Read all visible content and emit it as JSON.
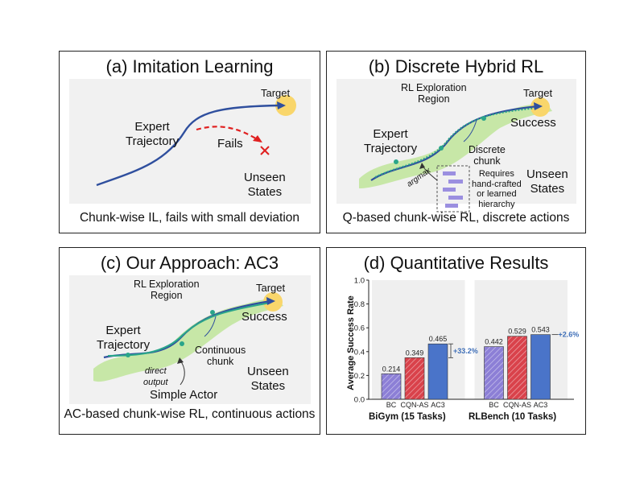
{
  "panel_a": {
    "title": "(a) Imitation Learning",
    "target": "Target",
    "expert": "Expert\nTrajectory",
    "fails": "Fails",
    "unseen": "Unseen\nStates",
    "caption": "Chunk-wise IL, fails with small deviation"
  },
  "panel_b": {
    "title": "(b) Discrete Hybrid RL",
    "rl_region": "RL Exploration\nRegion",
    "target": "Target",
    "success": "Success",
    "expert": "Expert\nTrajectory",
    "discrete_chunk": "Discrete\nchunk",
    "argmax": "argmax",
    "requires": "Requires\nhand-crafted\nor learned\nhierarchy",
    "unseen": "Unseen\nStates",
    "caption": "Q-based chunk-wise RL, discrete actions"
  },
  "panel_c": {
    "title": "(c) Our Approach: AC3",
    "rl_region": "RL Exploration\nRegion",
    "target": "Target",
    "success": "Success",
    "expert": "Expert\nTrajectory",
    "continuous_chunk": "Continuous\nchunk",
    "direct_output": "direct\noutput",
    "simple_actor": "Simple Actor",
    "unseen": "Unseen\nStates",
    "caption": "AC-based chunk-wise RL, continuous actions"
  },
  "panel_d": {
    "title": "(d) Quantitative Results"
  },
  "chart_data": {
    "type": "bar",
    "ylabel": "Average Success Rate",
    "ylim": [
      0.0,
      1.0
    ],
    "yticks": [
      "0.0",
      "0.2",
      "0.4",
      "0.6",
      "0.8",
      "1.0"
    ],
    "groups": [
      {
        "name": "BiGym (15 Tasks)",
        "categories": [
          "BC",
          "CQN-AS",
          "AC3"
        ],
        "values": [
          0.214,
          0.349,
          0.465
        ],
        "value_labels": [
          "0.214",
          "0.349",
          "0.465"
        ],
        "improvement": "+33.2%"
      },
      {
        "name": "RLBench (10 Tasks)",
        "categories": [
          "BC",
          "CQN-AS",
          "AC3"
        ],
        "values": [
          0.442,
          0.529,
          0.543
        ],
        "value_labels": [
          "0.442",
          "0.529",
          "0.543"
        ],
        "improvement": "+2.6%"
      }
    ],
    "colors": {
      "BC": "#8c7fd6",
      "CQN-AS": "#d9424b",
      "AC3": "#4a74c9",
      "improvement": "#3f6fb8"
    },
    "grid": false
  }
}
